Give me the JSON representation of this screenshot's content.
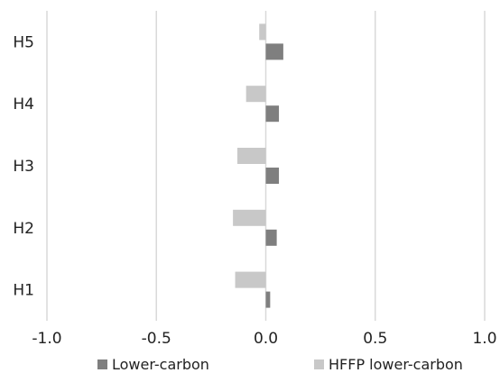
{
  "chart_data": {
    "type": "bar",
    "orientation": "horizontal",
    "categories": [
      "H1",
      "H2",
      "H3",
      "H4",
      "H5"
    ],
    "series": [
      {
        "name": "Lower-carbon",
        "color": "#7f7f7f",
        "values": [
          0.02,
          0.05,
          0.06,
          0.06,
          0.08
        ]
      },
      {
        "name": "HFFP lower-carbon",
        "color": "#c8c8c8",
        "values": [
          -0.14,
          -0.15,
          -0.13,
          -0.09,
          -0.03
        ]
      }
    ],
    "xlim": [
      -1.0,
      1.0
    ],
    "xticks": [
      "-1.0",
      "-0.5",
      "0.0",
      "0.5",
      "1.0"
    ],
    "xtick_values": [
      -1.0,
      -0.5,
      0.0,
      0.5,
      1.0
    ],
    "grid": "vertical",
    "legend_position": "bottom"
  }
}
